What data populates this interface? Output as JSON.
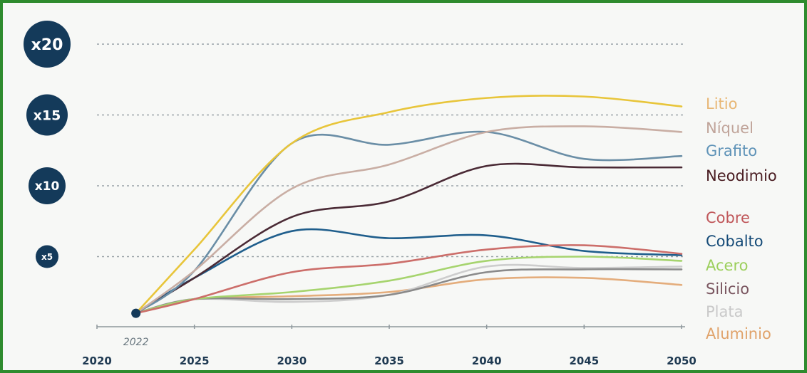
{
  "chart_data": {
    "type": "line",
    "xlabel": "",
    "ylabel": "",
    "x_ticks": [
      "2020",
      "2025",
      "2030",
      "2035",
      "2040",
      "2045",
      "2050"
    ],
    "xlim": [
      2020,
      2050
    ],
    "y_levels": [
      {
        "label": "x20",
        "value": 20
      },
      {
        "label": "x15",
        "value": 15
      },
      {
        "label": "x10",
        "value": 10
      },
      {
        "label": "x5",
        "value": 5
      }
    ],
    "ylim": [
      0,
      21
    ],
    "grid": true,
    "legend_position": "right",
    "start_point": {
      "x": 2022,
      "y": 1,
      "label": "2022"
    },
    "series": [
      {
        "name": "Litio",
        "color": "#e8b775",
        "line_color": "#e8c53a",
        "points": [
          [
            2022,
            1
          ],
          [
            2025,
            5.5
          ],
          [
            2030,
            13
          ],
          [
            2035,
            15.2
          ],
          [
            2040,
            16.2
          ],
          [
            2045,
            16.3
          ],
          [
            2050,
            15.6
          ]
        ]
      },
      {
        "name": "Níquel",
        "color": "#c0a49a",
        "line_color": "#c9aea4",
        "points": [
          [
            2022,
            1
          ],
          [
            2025,
            4
          ],
          [
            2030,
            9.8
          ],
          [
            2035,
            11.5
          ],
          [
            2040,
            13.8
          ],
          [
            2045,
            14.2
          ],
          [
            2050,
            13.8
          ]
        ]
      },
      {
        "name": "Grafito",
        "color": "#5f93b8",
        "line_color": "#6a8ea6",
        "points": [
          [
            2022,
            1
          ],
          [
            2025,
            4
          ],
          [
            2030,
            13
          ],
          [
            2035,
            12.9
          ],
          [
            2040,
            13.8
          ],
          [
            2045,
            11.9
          ],
          [
            2050,
            12.1
          ]
        ]
      },
      {
        "name": "Neodimio",
        "color": "#4a1d22",
        "line_color": "#4a2a35",
        "points": [
          [
            2022,
            1
          ],
          [
            2025,
            3.5
          ],
          [
            2030,
            7.8
          ],
          [
            2035,
            8.9
          ],
          [
            2040,
            11.4
          ],
          [
            2045,
            11.3
          ],
          [
            2050,
            11.3
          ]
        ]
      },
      {
        "name": "Cobre",
        "color": "#c0575a",
        "line_color": "#cc6e6a",
        "points": [
          [
            2022,
            1
          ],
          [
            2025,
            2
          ],
          [
            2030,
            3.9
          ],
          [
            2035,
            4.5
          ],
          [
            2040,
            5.5
          ],
          [
            2045,
            5.8
          ],
          [
            2050,
            5.2
          ]
        ]
      },
      {
        "name": "Cobalto",
        "color": "#154b78",
        "line_color": "#1f5e8c",
        "points": [
          [
            2022,
            1
          ],
          [
            2025,
            3.5
          ],
          [
            2030,
            6.8
          ],
          [
            2035,
            6.3
          ],
          [
            2040,
            6.5
          ],
          [
            2045,
            5.4
          ],
          [
            2050,
            5.1
          ]
        ]
      },
      {
        "name": "Acero",
        "color": "#9ccf5c",
        "line_color": "#a6d46e",
        "points": [
          [
            2022,
            1
          ],
          [
            2025,
            2
          ],
          [
            2030,
            2.5
          ],
          [
            2035,
            3.3
          ],
          [
            2040,
            4.7
          ],
          [
            2045,
            5
          ],
          [
            2050,
            4.7
          ]
        ]
      },
      {
        "name": "Silicio",
        "color": "#7a5660",
        "line_color": "#8a8a8a",
        "points": [
          [
            2022,
            1
          ],
          [
            2025,
            2
          ],
          [
            2030,
            2
          ],
          [
            2035,
            2.3
          ],
          [
            2040,
            3.9
          ],
          [
            2045,
            4.1
          ],
          [
            2050,
            4.1
          ]
        ]
      },
      {
        "name": "Plata",
        "color": "#c9c9c9",
        "line_color": "#cdcdcd",
        "points": [
          [
            2022,
            1
          ],
          [
            2025,
            2
          ],
          [
            2030,
            1.8
          ],
          [
            2035,
            2.3
          ],
          [
            2040,
            4.3
          ],
          [
            2045,
            4.2
          ],
          [
            2050,
            4.3
          ]
        ]
      },
      {
        "name": "Aluminio",
        "color": "#e0a36b",
        "line_color": "#e4ad7c",
        "points": [
          [
            2022,
            1
          ],
          [
            2025,
            2
          ],
          [
            2030,
            2.2
          ],
          [
            2035,
            2.5
          ],
          [
            2040,
            3.4
          ],
          [
            2045,
            3.5
          ],
          [
            2050,
            3
          ]
        ]
      }
    ]
  }
}
